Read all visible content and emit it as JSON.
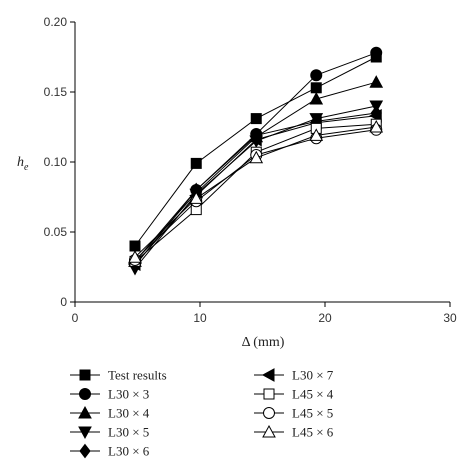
{
  "chart_data": {
    "type": "line",
    "title": "",
    "xlabel": "Δ (mm)",
    "ylabel_main": "h",
    "ylabel_sub": "e",
    "xlim": [
      0,
      30
    ],
    "ylim": [
      0,
      0.2
    ],
    "xticks": [
      0,
      10,
      20,
      30
    ],
    "yticks": [
      0,
      0.05,
      0.1,
      0.15,
      0.2
    ],
    "ytick_labels": [
      "0",
      "0.05",
      "0.10",
      "0.15",
      "0.20"
    ],
    "grid": false,
    "legend_position": "bottom",
    "x": [
      4.8,
      9.7,
      14.5,
      19.3,
      24.1
    ],
    "series": [
      {
        "name": "Test results",
        "marker": "square",
        "filled": true,
        "values": [
          0.04,
          0.099,
          0.131,
          0.153,
          0.175
        ]
      },
      {
        "name": "L30 × 3",
        "marker": "circle",
        "filled": true,
        "values": [
          0.029,
          0.08,
          0.12,
          0.162,
          0.178
        ]
      },
      {
        "name": "L30 × 4",
        "marker": "triangle-up",
        "filled": true,
        "values": [
          0.029,
          0.078,
          0.118,
          0.145,
          0.157
        ]
      },
      {
        "name": "L30 × 5",
        "marker": "triangle-down",
        "filled": true,
        "values": [
          0.024,
          0.077,
          0.115,
          0.131,
          0.14
        ]
      },
      {
        "name": "L30 × 6",
        "marker": "diamond",
        "filled": true,
        "values": [
          0.026,
          0.08,
          0.119,
          0.129,
          0.135
        ]
      },
      {
        "name": "L30 × 7",
        "marker": "triangle-left",
        "filled": true,
        "values": [
          0.027,
          0.076,
          0.116,
          0.128,
          0.133
        ]
      },
      {
        "name": "L45 × 4",
        "marker": "square",
        "filled": false,
        "values": [
          0.029,
          0.066,
          0.107,
          0.124,
          0.127
        ]
      },
      {
        "name": "L45 × 5",
        "marker": "circle",
        "filled": false,
        "values": [
          0.03,
          0.072,
          0.105,
          0.117,
          0.123
        ]
      },
      {
        "name": "L45 × 6",
        "marker": "triangle-up",
        "filled": false,
        "values": [
          0.032,
          0.074,
          0.103,
          0.119,
          0.125
        ]
      }
    ]
  }
}
